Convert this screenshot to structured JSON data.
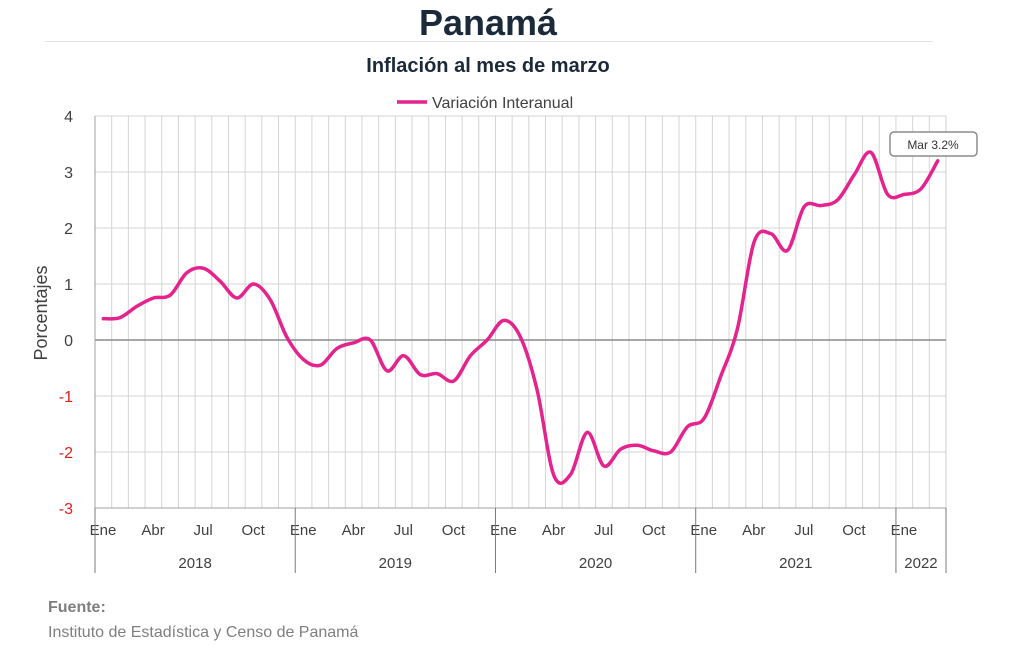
{
  "page": {
    "title": "Panamá",
    "subtitle": "Inflación al mes de marzo",
    "source_label": "Fuente:",
    "source_text": "Instituto de Estadística y Censo de Panamá"
  },
  "chart_data": {
    "type": "line",
    "legend": "top-center",
    "ylabel": "Porcentajes",
    "ylim": [
      -3,
      4
    ],
    "yticks": [
      "4",
      "3",
      "2",
      "1",
      "0",
      "-1",
      "-2",
      "-3"
    ],
    "grid": true,
    "month_labels": [
      "Ene",
      "Abr",
      "Jul",
      "Oct"
    ],
    "years": [
      "2018",
      "2019",
      "2020",
      "2021",
      "2022"
    ],
    "x": [
      "2018-01",
      "2018-02",
      "2018-03",
      "2018-04",
      "2018-05",
      "2018-06",
      "2018-07",
      "2018-08",
      "2018-09",
      "2018-10",
      "2018-11",
      "2018-12",
      "2019-01",
      "2019-02",
      "2019-03",
      "2019-04",
      "2019-05",
      "2019-06",
      "2019-07",
      "2019-08",
      "2019-09",
      "2019-10",
      "2019-11",
      "2019-12",
      "2020-01",
      "2020-02",
      "2020-03",
      "2020-04",
      "2020-05",
      "2020-06",
      "2020-07",
      "2020-08",
      "2020-09",
      "2020-10",
      "2020-11",
      "2020-12",
      "2021-01",
      "2021-02",
      "2021-03",
      "2021-04",
      "2021-05",
      "2021-06",
      "2021-07",
      "2021-08",
      "2021-09",
      "2021-10",
      "2021-11",
      "2021-12",
      "2022-01",
      "2022-02",
      "2022-03"
    ],
    "series": [
      {
        "name": "Variación Interanual",
        "color": "#e4238f",
        "values": [
          0.38,
          0.4,
          0.6,
          0.75,
          0.8,
          1.2,
          1.28,
          1.05,
          0.75,
          1.0,
          0.72,
          0.05,
          -0.35,
          -0.45,
          -0.15,
          -0.05,
          0.0,
          -0.55,
          -0.28,
          -0.62,
          -0.6,
          -0.73,
          -0.28,
          0.0,
          0.35,
          0.05,
          -0.9,
          -2.42,
          -2.4,
          -1.65,
          -2.25,
          -1.95,
          -1.88,
          -1.98,
          -2.0,
          -1.55,
          -1.4,
          -0.65,
          0.2,
          1.75,
          1.9,
          1.6,
          2.38,
          2.4,
          2.5,
          2.95,
          3.35,
          2.6,
          2.6,
          2.7,
          3.2
        ]
      }
    ],
    "annotation": "Mar 3.2%"
  }
}
